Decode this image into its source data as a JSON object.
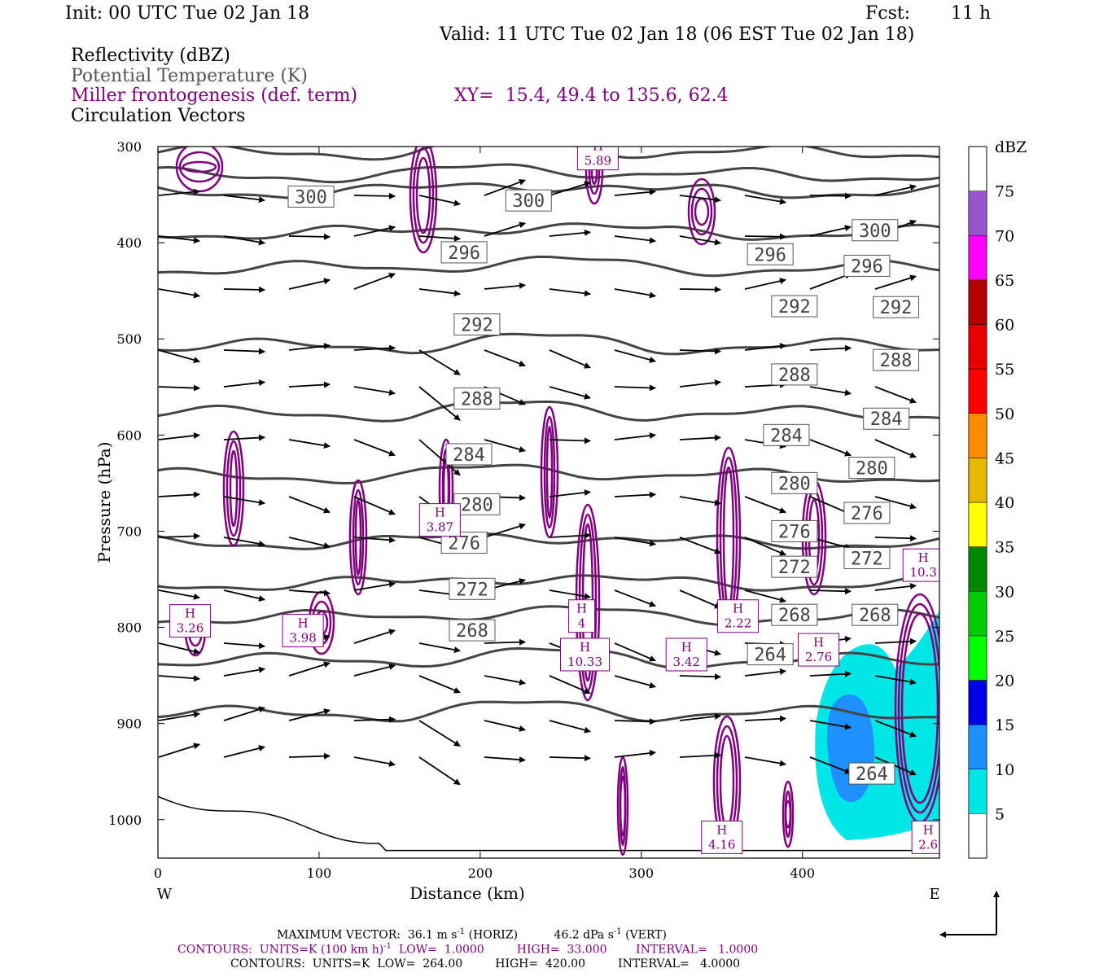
{
  "header": {
    "init": "Init: 00 UTC Tue 02 Jan 18",
    "fcst_label": "Fcst:",
    "fcst_value": "11 h",
    "valid": "Valid: 11 UTC Tue 02 Jan 18 (06 EST Tue 02 Jan 18)",
    "field1": "Reflectivity (dBZ)",
    "field2": "Potential Temperature (K)",
    "field3": "Miller frontogenesis (def. term)",
    "xy": "XY=  15.4, 49.4 to 135.6, 62.4",
    "field4": "Circulation Vectors"
  },
  "colors": {
    "theta": "#444444",
    "frontogenesis": "#800080",
    "light_refl": "#00e6e6",
    "mid_refl": "#1e90ff",
    "vector": "#000000"
  },
  "chart_data": {
    "type": "cross-section",
    "xlabel": "Distance (km)",
    "ylabel": "Pressure (hPa)",
    "xlim": [
      0,
      485
    ],
    "ylim": [
      1040,
      300
    ],
    "xticks": [
      0,
      100,
      200,
      300,
      400
    ],
    "yticks": [
      300,
      400,
      500,
      600,
      700,
      800,
      900,
      1000
    ],
    "x_end_labels": {
      "left": "W",
      "right": "E"
    },
    "theta_labels": [
      {
        "v": "300",
        "x": 95,
        "p": 352
      },
      {
        "v": "300",
        "x": 230,
        "p": 356
      },
      {
        "v": "300",
        "x": 445,
        "p": 387
      },
      {
        "v": "296",
        "x": 190,
        "p": 410
      },
      {
        "v": "296",
        "x": 380,
        "p": 412
      },
      {
        "v": "296",
        "x": 440,
        "p": 424
      },
      {
        "v": "292",
        "x": 198,
        "p": 485
      },
      {
        "v": "292",
        "x": 395,
        "p": 466
      },
      {
        "v": "292",
        "x": 458,
        "p": 467
      },
      {
        "v": "288",
        "x": 198,
        "p": 562
      },
      {
        "v": "288",
        "x": 395,
        "p": 537
      },
      {
        "v": "288",
        "x": 458,
        "p": 522
      },
      {
        "v": "284",
        "x": 193,
        "p": 620
      },
      {
        "v": "284",
        "x": 390,
        "p": 600
      },
      {
        "v": "284",
        "x": 452,
        "p": 583
      },
      {
        "v": "280",
        "x": 198,
        "p": 672
      },
      {
        "v": "280",
        "x": 395,
        "p": 650
      },
      {
        "v": "280",
        "x": 443,
        "p": 634
      },
      {
        "v": "276",
        "x": 190,
        "p": 712
      },
      {
        "v": "276",
        "x": 395,
        "p": 700
      },
      {
        "v": "276",
        "x": 440,
        "p": 681
      },
      {
        "v": "272",
        "x": 195,
        "p": 760
      },
      {
        "v": "272",
        "x": 395,
        "p": 737
      },
      {
        "v": "272",
        "x": 440,
        "p": 728
      },
      {
        "v": "268",
        "x": 195,
        "p": 803
      },
      {
        "v": "268",
        "x": 395,
        "p": 787
      },
      {
        "v": "268",
        "x": 445,
        "p": 787
      },
      {
        "v": "264",
        "x": 380,
        "p": 828
      },
      {
        "v": "264",
        "x": 443,
        "p": 952
      }
    ],
    "highs": [
      {
        "v": "3.26",
        "x": 20,
        "p": 795
      },
      {
        "v": "3.98",
        "x": 90,
        "p": 805
      },
      {
        "v": "3.87",
        "x": 175,
        "p": 690
      },
      {
        "v": "4",
        "x": 263,
        "p": 790
      },
      {
        "v": "10.33",
        "x": 265,
        "p": 830
      },
      {
        "v": "3.42",
        "x": 328,
        "p": 830
      },
      {
        "v": "2.22",
        "x": 360,
        "p": 790
      },
      {
        "v": "2.76",
        "x": 410,
        "p": 825
      },
      {
        "v": "10.3",
        "x": 475,
        "p": 737
      },
      {
        "v": "4.16",
        "x": 350,
        "p": 1020
      },
      {
        "v": "2.6",
        "x": 478,
        "p": 1020
      },
      {
        "v": "5.89",
        "x": 273,
        "p": 309
      }
    ],
    "colorbar": {
      "title": "dBZ",
      "ticks": [
        "5",
        "10",
        "15",
        "20",
        "25",
        "30",
        "35",
        "40",
        "45",
        "50",
        "55",
        "60",
        "65",
        "70",
        "75"
      ],
      "colors": [
        "#00e6e6",
        "#1e90ff",
        "#0000e6",
        "#00ff00",
        "#00cc00",
        "#008800",
        "#ffff00",
        "#e6b800",
        "#ff8c00",
        "#ff0000",
        "#e60000",
        "#b30000",
        "#ff00ff",
        "#9955cc"
      ]
    }
  },
  "footer": {
    "line1": "MAXIMUM VECTOR:  36.1 m s",
    "line1_sup": "-1",
    "line1_b": " (HORIZ)          46.2 dPa s",
    "line1_sup2": "-1",
    "line1_c": " (VERT)",
    "line2": "CONTOURS:  UNITS=K (100 km h)",
    "line2_sup": "-1",
    "line2_b": "  LOW=  1.0000         HIGH=  33.000        INTERVAL=   1.0000",
    "line3": "CONTOURS:  UNITS=K  LOW=  264.00         HIGH=  420.00         INTERVAL=   4.0000"
  }
}
